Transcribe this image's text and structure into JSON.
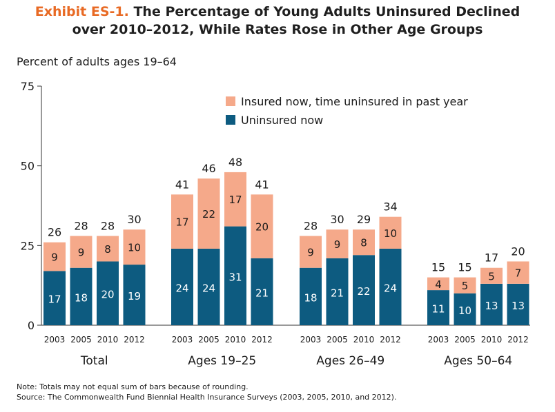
{
  "title": {
    "prefix": "Exhibit ES-1.",
    "line1": " The Percentage of Young Adults Uninsured Declined",
    "line2": "over 2010–2012, While Rates Rose in Other Age Groups"
  },
  "notes": {
    "note": "Note: Totals may not equal sum of bars because of rounding.",
    "source": "Source: The Commonwealth Fund Biennial Health Insurance Surveys (2003, 2005, 2010, and 2012)."
  },
  "colors": {
    "uninsured": "#0d5b80",
    "insured_gap": "#f5a98a",
    "axis": "#333333",
    "title_accent": "#e86a24"
  },
  "chart_data": {
    "type": "bar",
    "stacked": true,
    "ylabel": "Percent of adults ages 19–64",
    "ylim": [
      0,
      75
    ],
    "yticks": [
      0,
      25,
      50,
      75
    ],
    "legend": {
      "placement": "top-right",
      "entries": [
        "Insured now, time uninsured in past year",
        "Uninsured now"
      ]
    },
    "groups": [
      {
        "label": "Total",
        "categories": [
          "2003",
          "2005",
          "2010",
          "2012"
        ],
        "uninsured": [
          17,
          18,
          20,
          19
        ],
        "insured_gap": [
          9,
          9,
          8,
          10
        ],
        "totals": [
          26,
          28,
          28,
          30
        ]
      },
      {
        "label": "Ages 19–25",
        "categories": [
          "2003",
          "2005",
          "2010",
          "2012"
        ],
        "uninsured": [
          24,
          24,
          31,
          21
        ],
        "insured_gap": [
          17,
          22,
          17,
          20
        ],
        "totals": [
          41,
          46,
          48,
          41
        ]
      },
      {
        "label": "Ages 26–49",
        "categories": [
          "2003",
          "2005",
          "2010",
          "2012"
        ],
        "uninsured": [
          18,
          21,
          22,
          24
        ],
        "insured_gap": [
          9,
          9,
          8,
          10
        ],
        "totals": [
          28,
          30,
          29,
          34
        ]
      },
      {
        "label": "Ages 50–64",
        "categories": [
          "2003",
          "2005",
          "2010",
          "2012"
        ],
        "uninsured": [
          11,
          10,
          13,
          13
        ],
        "insured_gap": [
          4,
          5,
          5,
          7
        ],
        "totals": [
          15,
          15,
          17,
          20
        ]
      }
    ]
  }
}
